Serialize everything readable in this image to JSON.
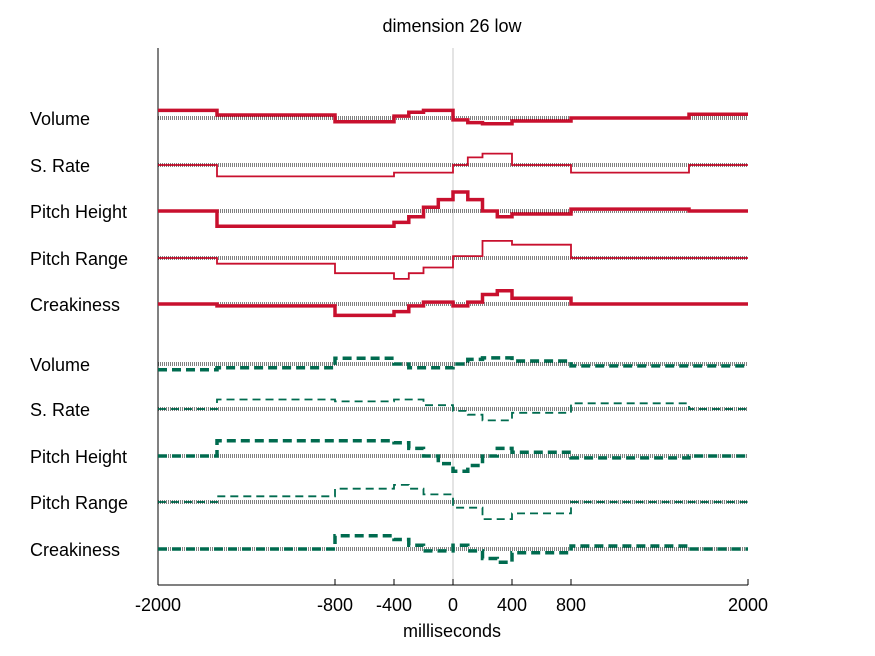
{
  "chart_data": {
    "type": "line",
    "title": "dimension 26 low",
    "xlabel": "milliseconds",
    "ylabel": "",
    "xlim": [
      -2000,
      2000
    ],
    "xticks": [
      -2000,
      -800,
      -400,
      0,
      400,
      800,
      2000
    ],
    "grid": false,
    "colors": {
      "high": "#c8102e",
      "low": "#006b4f",
      "baseline": "#000000",
      "zero_line": "#c8c8c8"
    },
    "series": [
      {
        "group": "high",
        "name": "Volume",
        "weight": "thick",
        "points": [
          [
            -2000,
            0.2
          ],
          [
            -1600,
            0.08
          ],
          [
            -800,
            -0.1
          ],
          [
            -400,
            0.05
          ],
          [
            -300,
            0.15
          ],
          [
            -200,
            0.2
          ],
          [
            0,
            -0.05
          ],
          [
            100,
            -0.12
          ],
          [
            200,
            -0.15
          ],
          [
            400,
            -0.08
          ],
          [
            800,
            0
          ],
          [
            1600,
            0.1
          ],
          [
            2000,
            0.1
          ]
        ]
      },
      {
        "group": "high",
        "name": "S. Rate",
        "weight": "thin",
        "points": [
          [
            -2000,
            0
          ],
          [
            -1600,
            -0.3
          ],
          [
            -400,
            -0.2
          ],
          [
            0,
            0
          ],
          [
            100,
            0.2
          ],
          [
            200,
            0.3
          ],
          [
            400,
            0
          ],
          [
            800,
            -0.2
          ],
          [
            1600,
            0
          ],
          [
            2000,
            0
          ]
        ]
      },
      {
        "group": "high",
        "name": "Pitch Height",
        "weight": "thick",
        "points": [
          [
            -2000,
            0
          ],
          [
            -1600,
            -0.4
          ],
          [
            -400,
            -0.3
          ],
          [
            -300,
            -0.15
          ],
          [
            -200,
            0.1
          ],
          [
            -100,
            0.3
          ],
          [
            0,
            0.5
          ],
          [
            100,
            0.3
          ],
          [
            200,
            0
          ],
          [
            300,
            -0.15
          ],
          [
            400,
            -0.08
          ],
          [
            800,
            0.05
          ],
          [
            1600,
            0
          ],
          [
            2000,
            0
          ]
        ]
      },
      {
        "group": "high",
        "name": "Pitch Range",
        "weight": "thin",
        "points": [
          [
            -2000,
            0
          ],
          [
            -1600,
            -0.15
          ],
          [
            -800,
            -0.4
          ],
          [
            -400,
            -0.55
          ],
          [
            -300,
            -0.4
          ],
          [
            -200,
            -0.25
          ],
          [
            0,
            0.05
          ],
          [
            200,
            0.45
          ],
          [
            400,
            0.35
          ],
          [
            800,
            0
          ],
          [
            1600,
            0
          ],
          [
            2000,
            0
          ]
        ]
      },
      {
        "group": "high",
        "name": "Creakiness",
        "weight": "thick",
        "points": [
          [
            -2000,
            0
          ],
          [
            -1600,
            -0.05
          ],
          [
            -800,
            -0.3
          ],
          [
            -400,
            -0.2
          ],
          [
            -300,
            -0.05
          ],
          [
            -200,
            0.05
          ],
          [
            0,
            -0.05
          ],
          [
            100,
            0.05
          ],
          [
            200,
            0.25
          ],
          [
            300,
            0.35
          ],
          [
            400,
            0.15
          ],
          [
            800,
            0
          ],
          [
            1600,
            0
          ],
          [
            2000,
            0
          ]
        ]
      },
      {
        "group": "low",
        "name": "Volume",
        "weight": "thick",
        "points": [
          [
            -2000,
            -0.15
          ],
          [
            -1600,
            -0.1
          ],
          [
            -800,
            0.15
          ],
          [
            -400,
            0
          ],
          [
            -300,
            -0.1
          ],
          [
            0,
            0
          ],
          [
            100,
            0.12
          ],
          [
            200,
            0.16
          ],
          [
            400,
            0.08
          ],
          [
            800,
            -0.05
          ],
          [
            2000,
            -0.05
          ]
        ]
      },
      {
        "group": "low",
        "name": "S. Rate",
        "weight": "thin",
        "points": [
          [
            -2000,
            0
          ],
          [
            -1600,
            0.25
          ],
          [
            -800,
            0.2
          ],
          [
            -400,
            0.25
          ],
          [
            -200,
            0.1
          ],
          [
            0,
            -0.05
          ],
          [
            100,
            -0.15
          ],
          [
            200,
            -0.3
          ],
          [
            400,
            -0.1
          ],
          [
            800,
            0.15
          ],
          [
            1600,
            0
          ],
          [
            2000,
            0
          ]
        ]
      },
      {
        "group": "low",
        "name": "Pitch Height",
        "weight": "thick",
        "points": [
          [
            -2000,
            0
          ],
          [
            -1600,
            0.4
          ],
          [
            -400,
            0.35
          ],
          [
            -300,
            0.2
          ],
          [
            -200,
            0
          ],
          [
            -100,
            -0.2
          ],
          [
            0,
            -0.4
          ],
          [
            100,
            -0.25
          ],
          [
            200,
            0
          ],
          [
            300,
            0.2
          ],
          [
            400,
            0.1
          ],
          [
            800,
            -0.05
          ],
          [
            1600,
            0
          ],
          [
            2000,
            0
          ]
        ]
      },
      {
        "group": "low",
        "name": "Pitch Range",
        "weight": "thin",
        "points": [
          [
            -2000,
            0
          ],
          [
            -1600,
            0.15
          ],
          [
            -800,
            0.35
          ],
          [
            -400,
            0.45
          ],
          [
            -300,
            0.35
          ],
          [
            -200,
            0.2
          ],
          [
            0,
            -0.15
          ],
          [
            200,
            -0.45
          ],
          [
            400,
            -0.3
          ],
          [
            800,
            0
          ],
          [
            1600,
            0
          ],
          [
            2000,
            0
          ]
        ]
      },
      {
        "group": "low",
        "name": "Creakiness",
        "weight": "thick",
        "points": [
          [
            -2000,
            0
          ],
          [
            -800,
            0.35
          ],
          [
            -400,
            0.25
          ],
          [
            -300,
            0.1
          ],
          [
            -200,
            -0.05
          ],
          [
            0,
            0.1
          ],
          [
            100,
            -0.05
          ],
          [
            200,
            -0.25
          ],
          [
            300,
            -0.35
          ],
          [
            400,
            -0.1
          ],
          [
            800,
            0.08
          ],
          [
            1600,
            0
          ],
          [
            2000,
            0
          ]
        ]
      }
    ]
  }
}
